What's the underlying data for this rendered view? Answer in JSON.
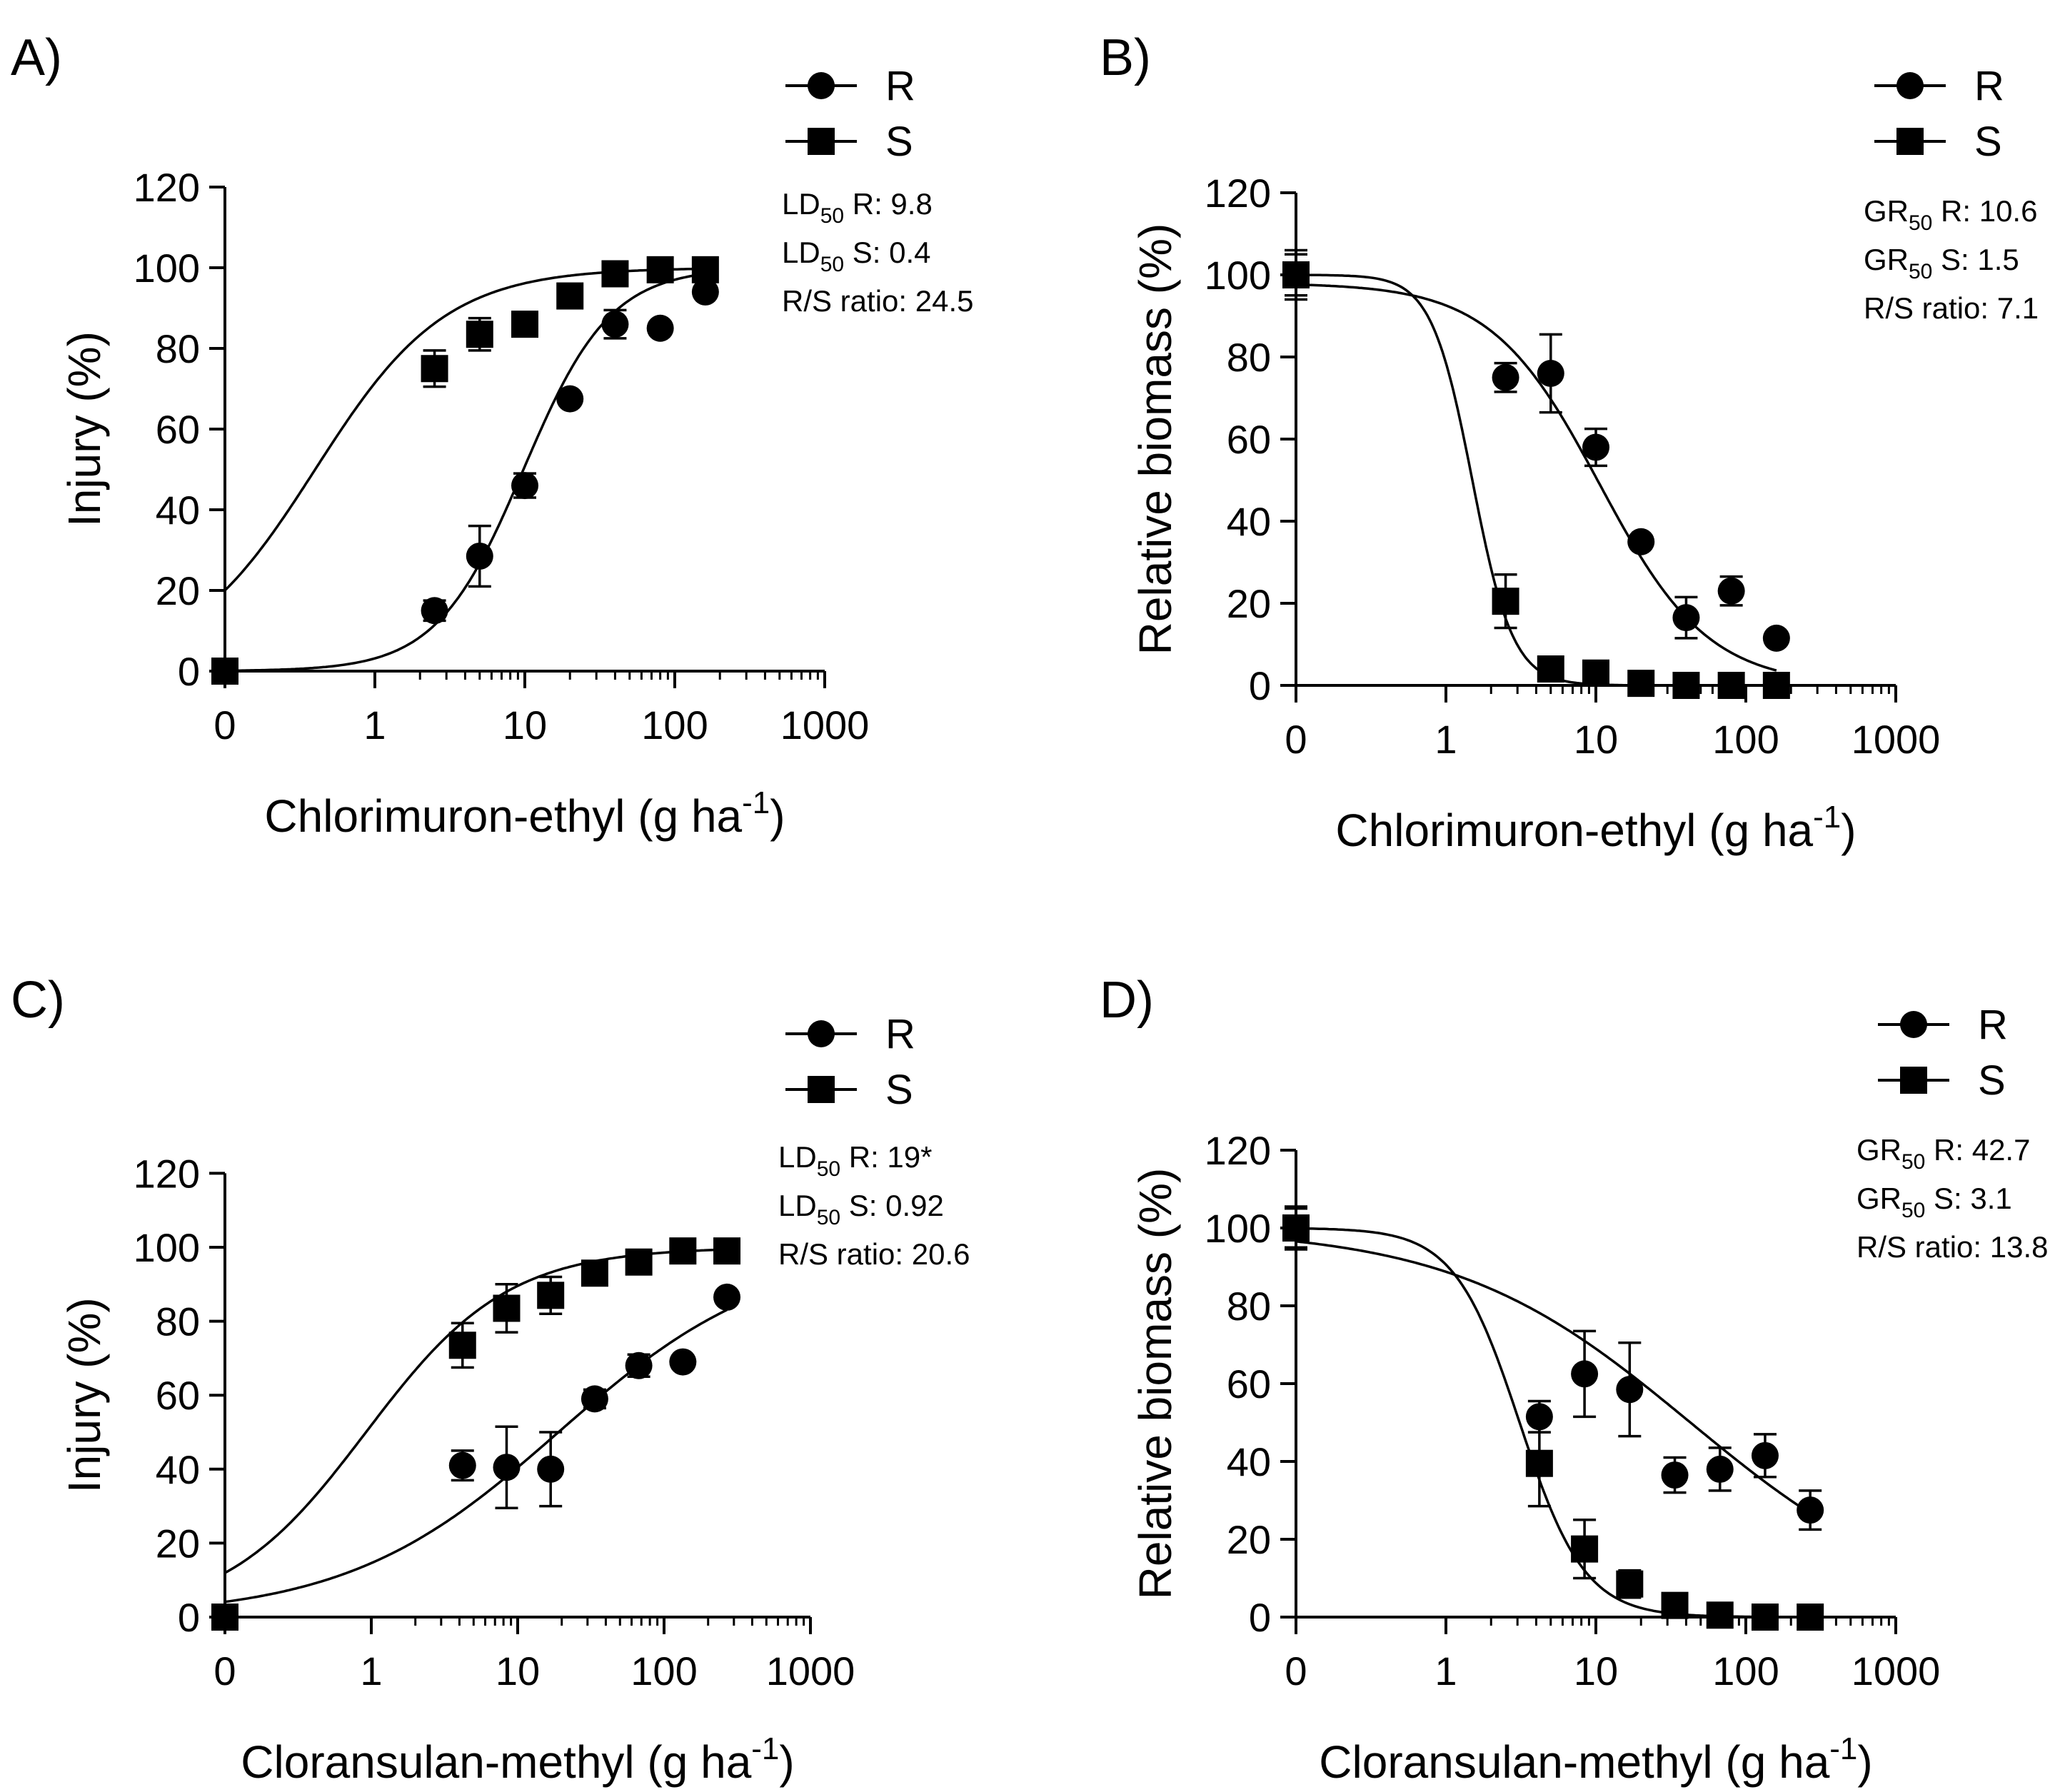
{
  "chart_data": [
    {
      "type": "scatter",
      "panel_label": "A)",
      "xlabel": "Chlorimuron-ethyl (g ha",
      "xlabel_sup": "-1",
      "xlabel_close": ")",
      "ylabel": "Injury (%)",
      "x_scale": "log-with-zero",
      "x_ticks": [
        "0",
        "1",
        "10",
        "100",
        "1000"
      ],
      "ylim": [
        0,
        120
      ],
      "y_ticks": [
        "0",
        "20",
        "40",
        "60",
        "80",
        "100",
        "120"
      ],
      "legend": [
        {
          "name": "R",
          "marker": "circle"
        },
        {
          "name": "S",
          "marker": "square"
        }
      ],
      "stats": [
        {
          "prefix": "LD",
          "sub": "50",
          "text": " R: 9.8"
        },
        {
          "prefix": "LD",
          "sub": "50",
          "text": " S: 0.4"
        },
        {
          "prefix": "",
          "sub": "",
          "text": "R/S ratio: 24.5"
        }
      ],
      "series": [
        {
          "name": "R",
          "marker": "circle",
          "x": [
            0,
            2.5,
            5,
            10,
            20,
            40,
            80,
            160
          ],
          "y": [
            0,
            15,
            28.5,
            46,
            67.5,
            86,
            85,
            94
          ],
          "err": [
            0,
            2.5,
            7.5,
            3,
            0,
            3.5,
            0,
            0
          ],
          "curve": {
            "model": "log-logistic",
            "ed50": 9.8,
            "slope": 1.5,
            "upper": 100,
            "lower": 0
          }
        },
        {
          "name": "S",
          "marker": "square",
          "x": [
            0,
            2.5,
            5,
            10,
            20,
            40,
            80,
            160
          ],
          "y": [
            0,
            75,
            83.5,
            86,
            93,
            98.5,
            99.5,
            99.5
          ],
          "err": [
            0,
            4.5,
            4,
            3,
            0,
            0,
            0,
            0
          ],
          "curve": {
            "model": "log-logistic",
            "ed50": 0.4,
            "slope": 1.0,
            "upper": 100,
            "lower": 0
          }
        }
      ]
    },
    {
      "type": "scatter",
      "panel_label": "B)",
      "xlabel": "Chlorimuron-ethyl (g ha",
      "xlabel_sup": "-1",
      "xlabel_close": ")",
      "ylabel": "Relative biomass (%)",
      "x_scale": "log-with-zero",
      "x_ticks": [
        "0",
        "1",
        "10",
        "100",
        "1000"
      ],
      "ylim": [
        0,
        120
      ],
      "y_ticks": [
        "0",
        "20",
        "40",
        "60",
        "80",
        "100",
        "120"
      ],
      "legend": [
        {
          "name": "R",
          "marker": "circle"
        },
        {
          "name": "S",
          "marker": "square"
        }
      ],
      "stats": [
        {
          "prefix": "GR",
          "sub": "50",
          "text": " R: 10.6"
        },
        {
          "prefix": "GR",
          "sub": "50",
          "text": " S: 1.5"
        },
        {
          "prefix": "",
          "sub": "",
          "text": "R/S ratio: 7.1"
        }
      ],
      "series": [
        {
          "name": "R",
          "marker": "circle",
          "x": [
            0,
            2.5,
            5,
            10,
            20,
            40,
            80,
            160
          ],
          "y": [
            100,
            75,
            76,
            58,
            35,
            16.5,
            23,
            11.5
          ],
          "err": [
            6,
            3.5,
            9.5,
            4.5,
            0,
            5,
            3.5,
            0
          ],
          "curve": {
            "model": "log-logistic-decay",
            "ed50": 10.6,
            "slope": 1.2,
            "upper": 98,
            "lower": 0
          }
        },
        {
          "name": "S",
          "marker": "square",
          "x": [
            0,
            2.5,
            5,
            10,
            20,
            40,
            80,
            160
          ],
          "y": [
            100,
            20.5,
            4,
            3,
            0.5,
            0,
            0,
            0
          ],
          "err": [
            5,
            6.5,
            0,
            0,
            0,
            0,
            0,
            0
          ],
          "curve": {
            "model": "log-logistic-decay",
            "ed50": 1.5,
            "slope": 3.2,
            "upper": 100,
            "lower": 0
          }
        }
      ]
    },
    {
      "type": "scatter",
      "panel_label": "C)",
      "xlabel": "Cloransulan-methyl (g ha",
      "xlabel_sup": "-1",
      "xlabel_close": ")",
      "ylabel": "Injury (%)",
      "x_scale": "log-with-zero",
      "x_ticks": [
        "0",
        "1",
        "10",
        "100",
        "1000"
      ],
      "ylim": [
        0,
        120
      ],
      "y_ticks": [
        "0",
        "20",
        "40",
        "60",
        "80",
        "100",
        "120"
      ],
      "legend": [
        {
          "name": "R",
          "marker": "circle"
        },
        {
          "name": "S",
          "marker": "square"
        }
      ],
      "stats": [
        {
          "prefix": "LD",
          "sub": "50",
          "text": " R: 19*"
        },
        {
          "prefix": "LD",
          "sub": "50",
          "text": " S: 0.92"
        },
        {
          "prefix": "",
          "sub": "",
          "text": "R/S ratio: 20.6"
        }
      ],
      "series": [
        {
          "name": "R",
          "marker": "circle",
          "x": [
            0,
            4.2,
            8.4,
            16.8,
            33.6,
            67.2,
            134.4,
            268.8
          ],
          "y": [
            0,
            41,
            40.5,
            40,
            59,
            68,
            69,
            86.5
          ],
          "err": [
            0,
            4,
            11,
            10,
            2.5,
            3,
            0,
            0
          ],
          "curve": {
            "model": "log-logistic",
            "ed50": 19,
            "slope": 0.6,
            "upper": 100,
            "lower": 0
          }
        },
        {
          "name": "S",
          "marker": "square",
          "x": [
            0,
            4.2,
            8.4,
            16.8,
            33.6,
            67.2,
            134.4,
            268.8
          ],
          "y": [
            0,
            73.5,
            83.5,
            87,
            93,
            96,
            99,
            99
          ],
          "err": [
            0,
            6,
            6.5,
            5,
            3,
            0,
            0,
            0
          ],
          "curve": {
            "model": "log-logistic",
            "ed50": 0.92,
            "slope": 0.9,
            "upper": 100,
            "lower": 0
          }
        }
      ]
    },
    {
      "type": "scatter",
      "panel_label": "D)",
      "xlabel": "Cloransulan-methyl (g ha",
      "xlabel_sup": "-1",
      "xlabel_close": ")",
      "ylabel": "Relative biomass (%)",
      "x_scale": "log-with-zero",
      "x_ticks": [
        "0",
        "1",
        "10",
        "100",
        "1000"
      ],
      "ylim": [
        0,
        120
      ],
      "y_ticks": [
        "0",
        "20",
        "40",
        "60",
        "80",
        "100",
        "120"
      ],
      "legend": [
        {
          "name": "R",
          "marker": "circle"
        },
        {
          "name": "S",
          "marker": "square"
        }
      ],
      "stats": [
        {
          "prefix": "GR",
          "sub": "50",
          "text": " R: 42.7"
        },
        {
          "prefix": "GR",
          "sub": "50",
          "text": " S: 3.1"
        },
        {
          "prefix": "",
          "sub": "",
          "text": "R/S ratio: 13.8"
        }
      ],
      "series": [
        {
          "name": "R",
          "marker": "circle",
          "x": [
            0,
            4.2,
            8.4,
            16.8,
            33.6,
            67.2,
            134.4,
            268.8
          ],
          "y": [
            100,
            51.5,
            62.5,
            58.5,
            36.5,
            38,
            41.5,
            27.5
          ],
          "err": [
            5.5,
            4,
            11,
            12,
            4.5,
            5.5,
            5.5,
            5
          ],
          "curve": {
            "model": "log-logistic-decay",
            "ed50": 42.7,
            "slope": 0.55,
            "upper": 100,
            "lower": 0
          }
        },
        {
          "name": "S",
          "marker": "square",
          "x": [
            0,
            4.2,
            8.4,
            16.8,
            33.6,
            67.2,
            134.4,
            268.8
          ],
          "y": [
            100,
            39.5,
            17.5,
            8.5,
            3,
            0.5,
            0,
            0
          ],
          "err": [
            5,
            11,
            7.5,
            3.5,
            0,
            0,
            0,
            0
          ],
          "curve": {
            "model": "log-logistic-decay",
            "ed50": 3.1,
            "slope": 2.0,
            "upper": 100,
            "lower": 0
          }
        }
      ]
    }
  ]
}
